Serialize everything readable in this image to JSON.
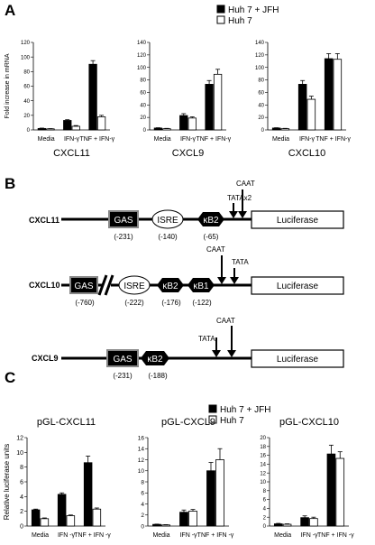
{
  "panels": {
    "A": {
      "letter": "A"
    },
    "B": {
      "letter": "B"
    },
    "C": {
      "letter": "C"
    }
  },
  "legend": {
    "series": [
      "Huh 7 + JFH",
      "Huh 7"
    ],
    "colors": [
      "#000000",
      "#ffffff"
    ]
  },
  "promoter_panel": {
    "reporter_label": "Luciferase",
    "constructs": [
      {
        "name": "CXCL11",
        "elements": [
          {
            "type": "rect",
            "label": "GAS",
            "position_label": "(-231)"
          },
          {
            "type": "ellipse",
            "label": "ISRE",
            "position_label": "(-140)"
          },
          {
            "type": "hex",
            "label": "κB2",
            "position_label": "(-65)"
          }
        ],
        "arrows": [
          {
            "label": "CAAT"
          },
          {
            "label": "TATAx2"
          }
        ]
      },
      {
        "name": "CXCL10",
        "elements": [
          {
            "type": "rect",
            "label": "GAS",
            "position_label": "(-760)"
          },
          {
            "type": "ellipse",
            "label": "ISRE",
            "position_label": "(-222)"
          },
          {
            "type": "hex",
            "label": "κB2",
            "position_label": "(-176)"
          },
          {
            "type": "hex",
            "label": "κB1",
            "position_label": "(-122)"
          }
        ],
        "arrows": [
          {
            "label": "CAAT"
          },
          {
            "label": "TATA"
          }
        ]
      },
      {
        "name": "CXCL9",
        "elements": [
          {
            "type": "rect",
            "label": "GAS",
            "position_label": "(-231)"
          },
          {
            "type": "hex",
            "label": "κB2",
            "position_label": "(-188)"
          }
        ],
        "arrows": [
          {
            "label": "TATA"
          },
          {
            "label": "CAAT"
          }
        ]
      }
    ]
  },
  "chart_data": [
    {
      "type": "bar",
      "panel": "A",
      "title": "",
      "xlabel": "CXCL11",
      "ylabel": "Fold increase in mRNA",
      "categories": [
        "Media",
        "IFN-γ",
        "TNF + IFN-γ"
      ],
      "ylim": [
        0,
        120
      ],
      "yticks": [
        0,
        20,
        40,
        60,
        80,
        100,
        120
      ],
      "series": [
        {
          "name": "Huh 7 + JFH",
          "values": [
            2,
            13,
            90
          ],
          "errors": [
            0.5,
            1,
            5
          ]
        },
        {
          "name": "Huh 7",
          "values": [
            1.5,
            5,
            18
          ],
          "errors": [
            0.3,
            1,
            2
          ]
        }
      ]
    },
    {
      "type": "bar",
      "panel": "A",
      "title": "",
      "xlabel": "CXCL9",
      "ylabel": "",
      "categories": [
        "Media",
        "IFN-γ",
        "TNF + IFN-γ"
      ],
      "ylim": [
        0,
        140
      ],
      "yticks": [
        0,
        20,
        40,
        60,
        80,
        100,
        120,
        140
      ],
      "series": [
        {
          "name": "Huh 7 + JFH",
          "values": [
            3,
            23,
            73
          ],
          "errors": [
            0.5,
            3,
            6
          ]
        },
        {
          "name": "Huh 7",
          "values": [
            2,
            19,
            89
          ],
          "errors": [
            0.5,
            2,
            8
          ]
        }
      ]
    },
    {
      "type": "bar",
      "panel": "A",
      "title": "",
      "xlabel": "CXCL10",
      "ylabel": "",
      "categories": [
        "Media",
        "IFN-γ",
        "TNF + IFN-γ"
      ],
      "ylim": [
        0,
        140
      ],
      "yticks": [
        0,
        20,
        40,
        60,
        80,
        100,
        120,
        140
      ],
      "series": [
        {
          "name": "Huh 7 + JFH",
          "values": [
            3,
            73,
            114
          ],
          "errors": [
            0.5,
            6,
            8
          ]
        },
        {
          "name": "Huh 7",
          "values": [
            2,
            49,
            113
          ],
          "errors": [
            0.5,
            5,
            9
          ]
        }
      ]
    },
    {
      "type": "bar",
      "panel": "C",
      "title": "pGL-CXCL11",
      "xlabel": "",
      "ylabel": "Relative luciferase units",
      "categories": [
        "Media",
        "IFN -γ",
        "TNF + IFN -γ"
      ],
      "ylim": [
        0,
        12
      ],
      "yticks": [
        0,
        2,
        4,
        6,
        8,
        10,
        12
      ],
      "series": [
        {
          "name": "Huh 7 + JFH",
          "values": [
            2.2,
            4.3,
            8.6
          ],
          "errors": [
            0.1,
            0.2,
            0.9
          ]
        },
        {
          "name": "Huh 7",
          "values": [
            1.0,
            1.4,
            2.3
          ],
          "errors": [
            0.1,
            0.1,
            0.15
          ]
        }
      ]
    },
    {
      "type": "bar",
      "panel": "C",
      "title": "pGL-CXCL9",
      "xlabel": "",
      "ylabel": "",
      "categories": [
        "Media",
        "IFN -γ",
        "TNF + IFN -γ"
      ],
      "ylim": [
        0,
        16
      ],
      "yticks": [
        0,
        2,
        4,
        6,
        8,
        10,
        12,
        14,
        16
      ],
      "series": [
        {
          "name": "Huh 7 + JFH",
          "values": [
            0.3,
            2.5,
            10
          ],
          "errors": [
            0.05,
            0.4,
            1.5
          ]
        },
        {
          "name": "Huh 7",
          "values": [
            0.2,
            2.7,
            12
          ],
          "errors": [
            0.05,
            0.3,
            2
          ]
        }
      ]
    },
    {
      "type": "bar",
      "panel": "C",
      "title": "pGL-CXCL10",
      "xlabel": "",
      "ylabel": "",
      "categories": [
        "Media",
        "IFN -γ",
        "TNF + IFN -γ"
      ],
      "ylim": [
        0,
        20
      ],
      "yticks": [
        0,
        2,
        4,
        6,
        8,
        10,
        12,
        14,
        16,
        18,
        20
      ],
      "series": [
        {
          "name": "Huh 7 + JFH",
          "values": [
            0.5,
            1.9,
            16.3
          ],
          "errors": [
            0.1,
            0.4,
            2
          ]
        },
        {
          "name": "Huh 7",
          "values": [
            0.4,
            1.7,
            15.3
          ],
          "errors": [
            0.1,
            0.3,
            1.5
          ]
        }
      ]
    }
  ]
}
